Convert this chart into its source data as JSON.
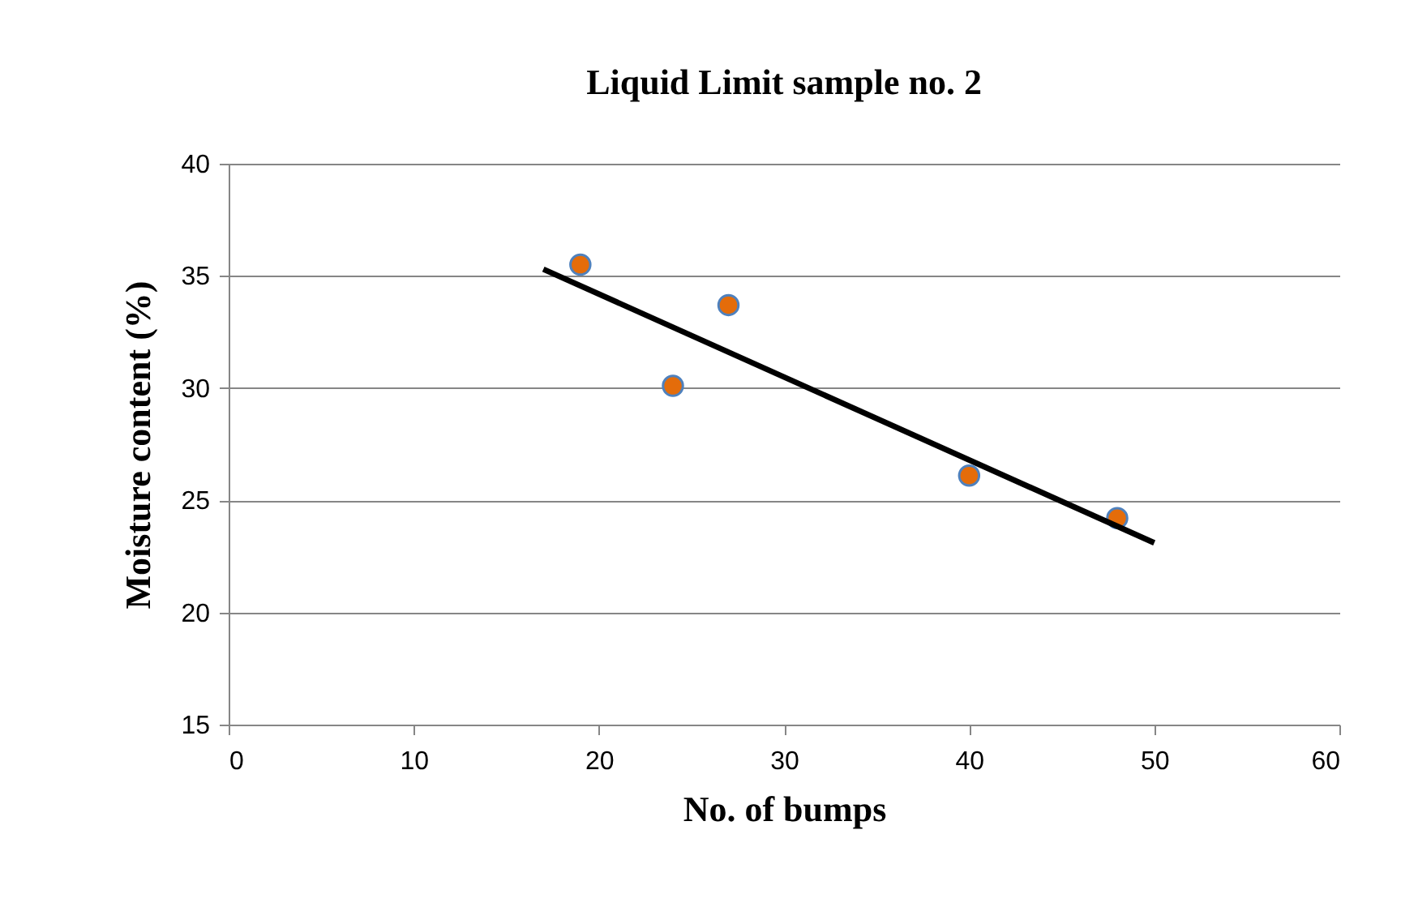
{
  "chart_data": {
    "type": "scatter",
    "title": "Liquid Limit sample no. 2",
    "xlabel": "No. of bumps",
    "ylabel": "Moisture content (%)",
    "xlim": [
      0,
      60
    ],
    "xticks": [
      0,
      10,
      20,
      30,
      40,
      50,
      60
    ],
    "ylim": [
      15,
      40
    ],
    "yticks": [
      15,
      20,
      25,
      30,
      35,
      40
    ],
    "grid": "y",
    "series": [
      {
        "marker": "circle",
        "color": "#e46c0a",
        "x": [
          19,
          24,
          27,
          40,
          48
        ],
        "values": [
          35.5,
          30.1,
          33.7,
          26.1,
          24.2
        ]
      },
      {
        "type": "line",
        "color": "#000000",
        "x": [
          17,
          50
        ],
        "values": [
          35.3,
          23.1
        ]
      }
    ]
  }
}
